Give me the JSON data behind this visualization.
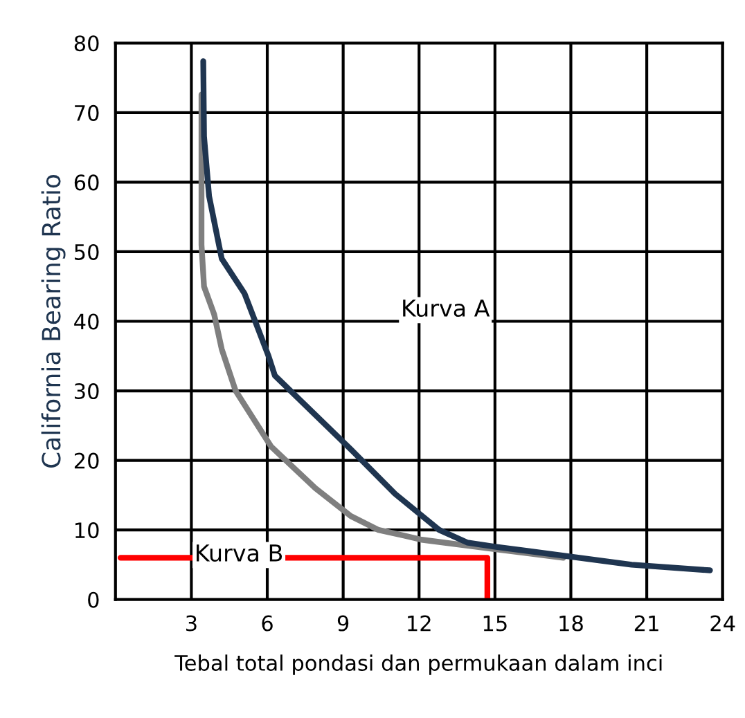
{
  "chart_data": {
    "type": "line",
    "xlabel": "Tebal total pondasi dan permukaan dalam inci",
    "ylabel": "California Bearing Ratio",
    "xlim": [
      0,
      24
    ],
    "ylim": [
      0,
      80
    ],
    "xticks": [
      3,
      6,
      9,
      12,
      15,
      18,
      21,
      24
    ],
    "yticks": [
      0,
      10,
      20,
      30,
      40,
      50,
      60,
      70,
      80
    ],
    "grid": true,
    "marker": "none",
    "line_style": "solid",
    "legend": false,
    "series": [
      {
        "color": "#7f7f7f",
        "x": [
          3.4,
          3.4,
          3.5,
          3.9,
          4.2,
          4.75,
          6.15,
          7.9,
          9.3,
          10.4,
          11.4,
          12.1,
          15.1,
          17.7
        ],
        "values": [
          72.6,
          51,
          45,
          41,
          36,
          30,
          22,
          16,
          12,
          10,
          9.2,
          8.6,
          7.2,
          6
        ]
      },
      {
        "color": "#1f3550",
        "x": [
          3.47,
          3.5,
          3.7,
          4.2,
          5.1,
          6.05,
          6.3,
          9.3,
          11.05,
          12.8,
          13.9,
          15,
          20.4,
          23.5
        ],
        "values": [
          77.4,
          66.6,
          58,
          49,
          44,
          35,
          32.2,
          21.6,
          15.2,
          10,
          8.2,
          7.6,
          5,
          4.2
        ]
      },
      {
        "color": "#ff0000",
        "x": [
          0.2,
          14.7,
          14.7
        ],
        "values": [
          6,
          6,
          0
        ]
      }
    ],
    "annotations": [
      "Kurva A",
      "Kurva B"
    ]
  }
}
